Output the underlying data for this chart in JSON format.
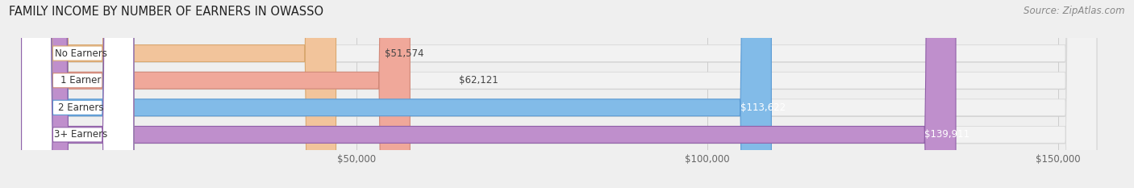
{
  "title": "FAMILY INCOME BY NUMBER OF EARNERS IN OWASSO",
  "source": "Source: ZipAtlas.com",
  "categories": [
    "No Earners",
    "1 Earner",
    "2 Earners",
    "3+ Earners"
  ],
  "values": [
    51574,
    62121,
    113622,
    139911
  ],
  "bar_colors": [
    "#f2c49b",
    "#f0a89a",
    "#82bbe8",
    "#bf8fcc"
  ],
  "label_colors": [
    "#444444",
    "#444444",
    "#ffffff",
    "#ffffff"
  ],
  "border_colors": [
    "#d9a870",
    "#d08878",
    "#5a9ad4",
    "#9060a8"
  ],
  "xlim_min": 0,
  "xlim_max": 160000,
  "xticks": [
    50000,
    100000,
    150000
  ],
  "xtick_labels": [
    "$50,000",
    "$100,000",
    "$150,000"
  ],
  "bg_color": "#efefef",
  "bar_bg_color": "#f2f2f2",
  "bar_bg_border": "#d8d8d8",
  "bar_height": 0.62,
  "title_fontsize": 10.5,
  "source_fontsize": 8.5,
  "value_fontsize": 8.5,
  "cat_fontsize": 8.5,
  "tick_fontsize": 8.5,
  "grid_color": "#cccccc",
  "shadow_color": "#cccccc"
}
